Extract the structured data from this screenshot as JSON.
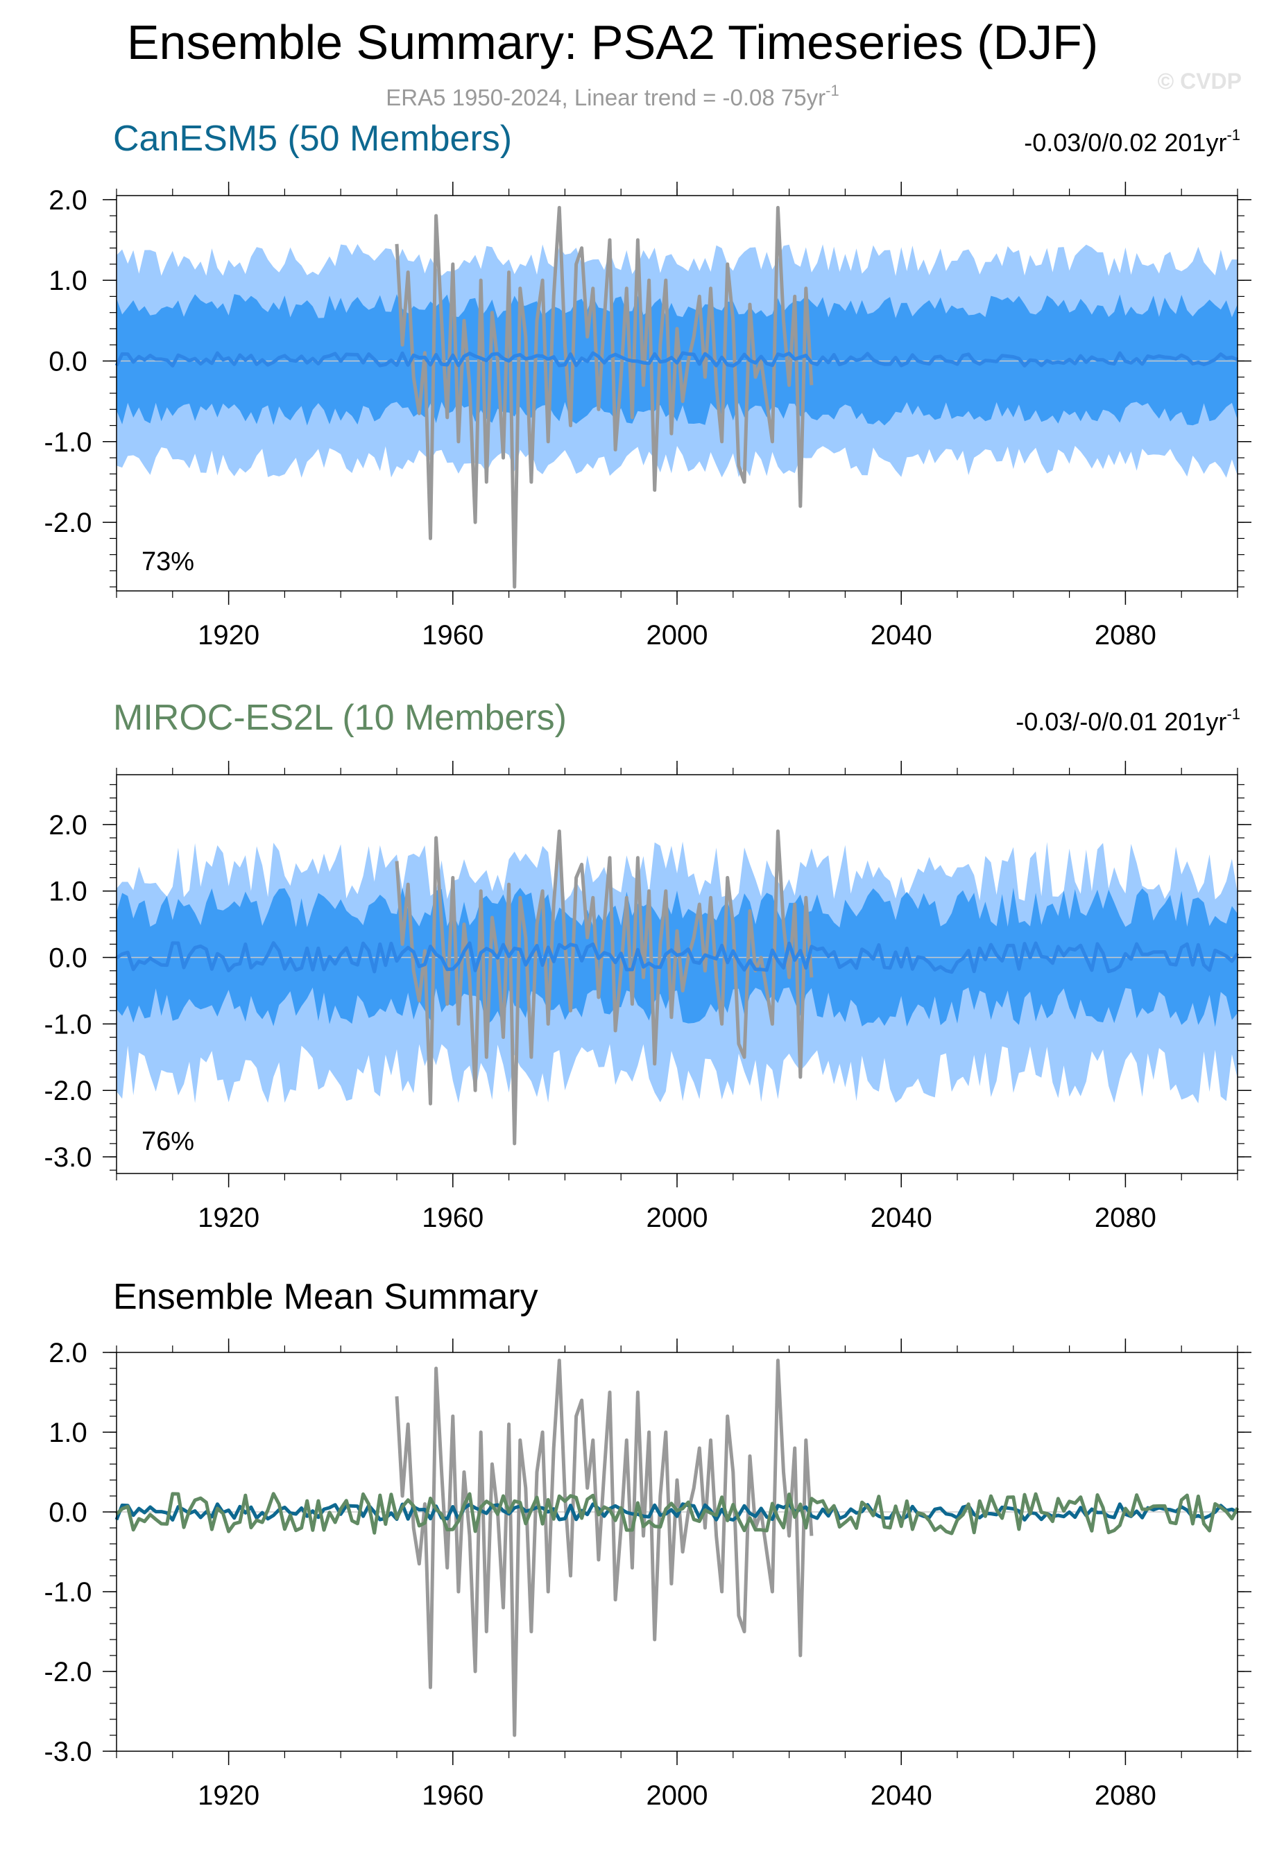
{
  "figure": {
    "title": "Ensemble Summary: PSA2 Timeseries (DJF)",
    "subtitle_prefix": "ERA5 1950-2024, Linear trend = -0.08 75yr",
    "subtitle_exp": "-1",
    "watermark": "© CVDP",
    "colors": {
      "band_outer": "#9ecbff",
      "band_inner": "#3d9cf5",
      "ensemble_mean_line": "#2f86e6",
      "observations": "#999999",
      "canesm5": "#0d6890",
      "miroc": "#618a63",
      "zero_line": "#c8c8c8",
      "frame": "#000000"
    }
  },
  "chart_data": [
    {
      "type": "line",
      "panel": "CanESM5",
      "title": "CanESM5 (50 Members)",
      "title_color": "#0d6890",
      "trend_prefix": "-0.03/0/0.02 201yr",
      "trend_exp": "-1",
      "percent_label": "73%",
      "xlim": [
        1900,
        2100
      ],
      "ylim": [
        -2.85,
        2.05
      ],
      "x_ticks": [
        1920,
        1960,
        2000,
        2040,
        2080
      ],
      "y_ticks": [
        2.0,
        1.0,
        0.0,
        -1.0,
        -2.0
      ],
      "y_tick_labels": [
        "2.0",
        "1.0",
        "0.0",
        "-1.0",
        "-2.0"
      ],
      "series": [
        {
          "name": "10-90% ensemble spread",
          "kind": "band",
          "lower_mean": -1.25,
          "upper_mean": 1.25,
          "noise": 0.2,
          "seed": 11
        },
        {
          "name": "25-75% ensemble spread",
          "kind": "band",
          "lower_mean": -0.65,
          "upper_mean": 0.68,
          "noise": 0.15,
          "seed": 23
        },
        {
          "name": "ensemble mean",
          "kind": "line",
          "mean": 0.02,
          "noise": 0.08,
          "seed": 37
        },
        {
          "name": "ERA5 observations",
          "kind": "obs",
          "x_range": [
            1950,
            2024
          ]
        }
      ]
    },
    {
      "type": "line",
      "panel": "MIROC-ES2L",
      "title": "MIROC-ES2L (10 Members)",
      "title_color": "#618a63",
      "trend_prefix": "-0.03/-0/0.01 201yr",
      "trend_exp": "-1",
      "percent_label": "76%",
      "xlim": [
        1900,
        2100
      ],
      "ylim": [
        -3.25,
        2.75
      ],
      "x_ticks": [
        1920,
        1960,
        2000,
        2040,
        2080
      ],
      "y_ticks": [
        2.0,
        1.0,
        0.0,
        -1.0,
        -2.0,
        -3.0
      ],
      "y_tick_labels": [
        "2.0",
        "1.0",
        "0.0",
        "-1.0",
        "-2.0",
        "-3.0"
      ],
      "series": [
        {
          "name": "10-90% ensemble spread",
          "kind": "band",
          "lower_mean": -1.75,
          "upper_mean": 1.3,
          "noise": 0.45,
          "seed": 51
        },
        {
          "name": "25-75% ensemble spread",
          "kind": "band",
          "lower_mean": -0.75,
          "upper_mean": 0.75,
          "noise": 0.3,
          "seed": 63
        },
        {
          "name": "ensemble mean",
          "kind": "line",
          "mean": 0.0,
          "noise": 0.22,
          "seed": 71
        },
        {
          "name": "ERA5 observations",
          "kind": "obs",
          "x_range": [
            1950,
            2024
          ]
        }
      ]
    },
    {
      "type": "line",
      "panel": "Ensemble Mean Summary",
      "title": "Ensemble Mean Summary",
      "title_color": "#000000",
      "xlim": [
        1900,
        2100
      ],
      "ylim": [
        -3.0,
        2.0
      ],
      "x_ticks": [
        1920,
        1960,
        2000,
        2040,
        2080
      ],
      "y_ticks": [
        2.0,
        1.0,
        0.0,
        -1.0,
        -2.0,
        -3.0
      ],
      "y_tick_labels": [
        "2.0",
        "1.0",
        "0.0",
        "-1.0",
        "-2.0",
        "-3.0"
      ],
      "series": [
        {
          "name": "ERA5",
          "kind": "obs",
          "x_range": [
            1950,
            2024
          ]
        },
        {
          "name": "CanESM5 ensemble mean",
          "kind": "line",
          "color_key": "canesm5",
          "mean": 0.0,
          "noise": 0.1,
          "seed": 37
        },
        {
          "name": "MIROC-ES2L ensemble mean",
          "kind": "line",
          "color_key": "miroc",
          "mean": -0.02,
          "noise": 0.25,
          "seed": 71
        }
      ]
    }
  ],
  "observations_era5": {
    "x": [
      1950,
      1951,
      1952,
      1953,
      1954,
      1955,
      1956,
      1957,
      1958,
      1959,
      1960,
      1961,
      1962,
      1963,
      1964,
      1965,
      1966,
      1967,
      1968,
      1969,
      1970,
      1971,
      1972,
      1973,
      1974,
      1975,
      1976,
      1977,
      1978,
      1979,
      1980,
      1981,
      1982,
      1983,
      1984,
      1985,
      1986,
      1987,
      1988,
      1989,
      1990,
      1991,
      1992,
      1993,
      1994,
      1995,
      1996,
      1997,
      1998,
      1999,
      2000,
      2001,
      2002,
      2003,
      2004,
      2005,
      2006,
      2007,
      2008,
      2009,
      2010,
      2011,
      2012,
      2013,
      2014,
      2015,
      2016,
      2017,
      2018,
      2019,
      2020,
      2021,
      2022,
      2023,
      2024
    ],
    "y": [
      1.45,
      0.2,
      1.1,
      -0.2,
      -0.65,
      0.1,
      -2.2,
      1.8,
      0.5,
      -0.7,
      1.2,
      -1.0,
      0.5,
      -0.3,
      -2.0,
      1.0,
      -1.5,
      0.6,
      0.0,
      -1.2,
      1.1,
      -2.8,
      0.9,
      0.3,
      -1.5,
      0.5,
      1.0,
      -1.0,
      0.8,
      1.9,
      0.2,
      -0.8,
      1.2,
      1.4,
      0.3,
      0.9,
      -0.6,
      0.5,
      1.5,
      -1.1,
      -0.2,
      0.9,
      -0.7,
      1.5,
      -0.3,
      1.0,
      -1.6,
      0.2,
      1.0,
      -0.9,
      0.4,
      -0.5,
      0.0,
      0.3,
      0.8,
      -0.2,
      0.9,
      -0.3,
      -1.0,
      1.2,
      0.5,
      -1.3,
      -1.5,
      0.7,
      -0.2,
      0.0,
      -0.5,
      -1.0,
      1.9,
      0.5,
      -0.3,
      0.8,
      -1.8,
      0.9,
      -0.3
    ]
  }
}
